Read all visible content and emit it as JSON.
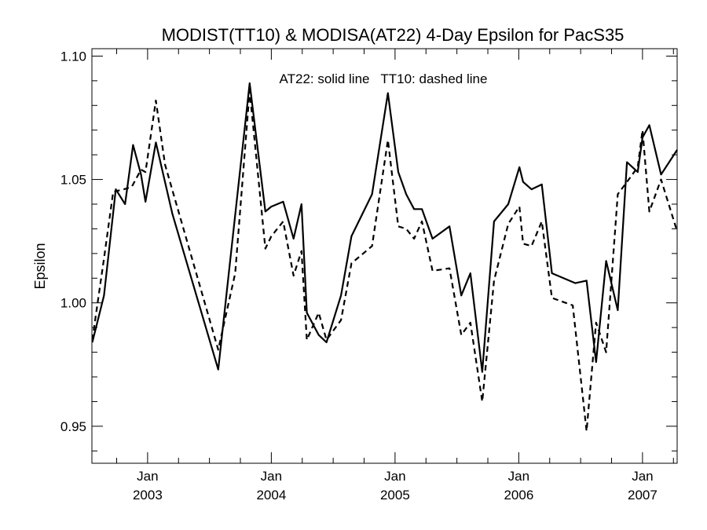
{
  "chart_data": {
    "type": "line",
    "title": "MODIST(TT10) & MODISA(AT22) 4-Day Epsilon for PacS35",
    "ylabel": "Epsilon",
    "legend_note": "AT22: solid line   TT10: dashed line",
    "xlim": [
      2002.55,
      2007.28
    ],
    "ylim": [
      0.935,
      1.103
    ],
    "yticks": [
      0.95,
      1.0,
      1.05,
      1.1
    ],
    "ytick_labels": [
      "0.95",
      "1.00",
      "1.05",
      "1.10"
    ],
    "xticks": [
      {
        "x": 2003.0,
        "month": "Jan",
        "year": "2003"
      },
      {
        "x": 2004.0,
        "month": "Jan",
        "year": "2004"
      },
      {
        "x": 2005.0,
        "month": "Jan",
        "year": "2005"
      },
      {
        "x": 2006.0,
        "month": "Jan",
        "year": "2006"
      },
      {
        "x": 2007.0,
        "month": "Jan",
        "year": "2007"
      }
    ],
    "series": [
      {
        "style": "solid",
        "x": [
          2002.553,
          2002.648,
          2002.743,
          2002.818,
          2002.883,
          2002.947,
          2002.983,
          2003.067,
          2003.201,
          2003.571,
          2003.825,
          2003.952,
          2004.0,
          2004.096,
          2004.18,
          2004.244,
          2004.287,
          2004.383,
          2004.446,
          2004.563,
          2004.648,
          2004.814,
          2004.942,
          2005.026,
          2005.09,
          2005.154,
          2005.217,
          2005.303,
          2005.44,
          2005.535,
          2005.609,
          2005.705,
          2005.8,
          2005.915,
          2006.005,
          2006.035,
          2006.103,
          2006.186,
          2006.268,
          2006.457,
          2006.548,
          2006.625,
          2006.706,
          2006.8,
          2006.874,
          2006.961,
          2007.0,
          2007.055,
          2007.15,
          2007.28
        ],
        "y": [
          0.984,
          1.003,
          1.046,
          1.04,
          1.064,
          1.052,
          1.041,
          1.065,
          1.036,
          0.973,
          1.089,
          1.037,
          1.039,
          1.041,
          1.026,
          1.04,
          0.996,
          0.987,
          0.984,
          1.003,
          1.027,
          1.044,
          1.085,
          1.053,
          1.044,
          1.038,
          1.038,
          1.026,
          1.031,
          1.003,
          1.012,
          0.972,
          1.033,
          1.04,
          1.055,
          1.049,
          1.046,
          1.048,
          1.012,
          1.008,
          1.009,
          0.976,
          1.017,
          0.997,
          1.057,
          1.053,
          1.067,
          1.072,
          1.052,
          1.062
        ]
      },
      {
        "style": "dashed",
        "x": [
          2002.553,
          2002.648,
          2002.722,
          2002.808,
          2002.872,
          2002.947,
          2002.983,
          2003.067,
          2003.141,
          2003.571,
          2003.708,
          2003.825,
          2003.952,
          2004.0,
          2004.096,
          2004.18,
          2004.244,
          2004.287,
          2004.383,
          2004.446,
          2004.563,
          2004.648,
          2004.814,
          2004.942,
          2005.026,
          2005.09,
          2005.154,
          2005.217,
          2005.303,
          2005.44,
          2005.535,
          2005.609,
          2005.705,
          2005.8,
          2005.915,
          2006.005,
          2006.035,
          2006.103,
          2006.186,
          2006.268,
          2006.436,
          2006.548,
          2006.625,
          2006.706,
          2006.8,
          2006.874,
          2006.961,
          2007.0,
          2007.055,
          2007.15,
          2007.28
        ],
        "y": [
          0.985,
          1.018,
          1.045,
          1.046,
          1.047,
          1.054,
          1.053,
          1.082,
          1.056,
          0.981,
          1.012,
          1.086,
          1.022,
          1.027,
          1.033,
          1.011,
          1.021,
          0.985,
          0.996,
          0.985,
          0.993,
          1.016,
          1.023,
          1.066,
          1.031,
          1.03,
          1.026,
          1.033,
          1.013,
          1.014,
          0.987,
          0.992,
          0.96,
          1.009,
          1.032,
          1.039,
          1.024,
          1.023,
          1.033,
          1.002,
          0.999,
          0.948,
          0.992,
          0.98,
          1.044,
          1.049,
          1.055,
          1.07,
          1.037,
          1.05,
          1.029
        ]
      }
    ]
  }
}
